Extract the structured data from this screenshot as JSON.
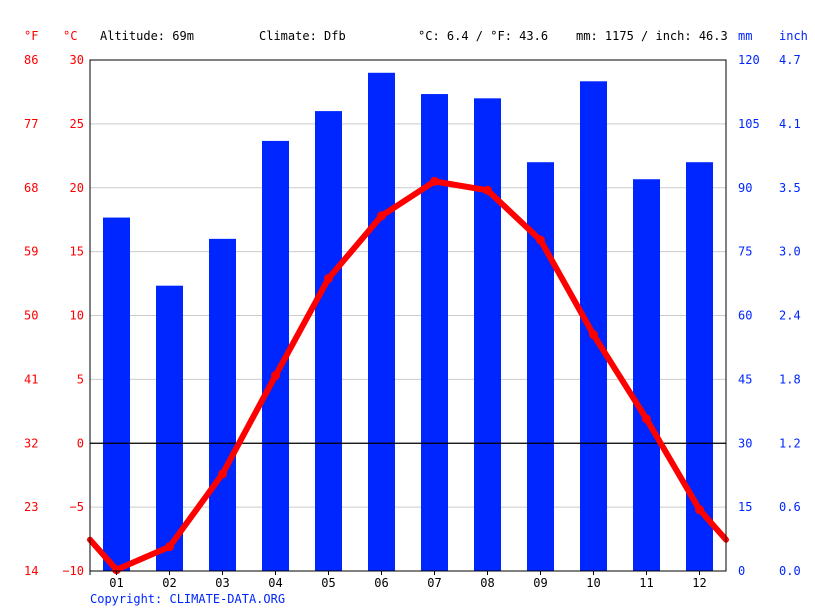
{
  "header": {
    "altitude": "Altitude: 69m",
    "climate": "Climate: Dfb",
    "temp_avg": "°C: 6.4 / °F: 43.6",
    "precip_total": "mm: 1175 / inch: 46.3"
  },
  "copyright": "Copyright: CLIMATE-DATA.ORG",
  "colors": {
    "temperature": "#ff0000",
    "precipitation": "#0026ff",
    "fahrenheit_axis": "#ff0000",
    "celsius_axis": "#ff0000",
    "mm_axis": "#0026ff",
    "inch_axis": "#0026ff"
  },
  "chart_data": {
    "type": "bar",
    "categories": [
      "01",
      "02",
      "03",
      "04",
      "05",
      "06",
      "07",
      "08",
      "09",
      "10",
      "11",
      "12"
    ],
    "series": [
      {
        "type": "bar",
        "unit": "mm",
        "values": [
          83,
          67,
          78,
          101,
          108,
          117,
          112,
          111,
          96,
          115,
          92,
          96
        ]
      },
      {
        "type": "line",
        "unit": "°C",
        "values": [
          -9.9,
          -8.1,
          -2.4,
          5.3,
          12.9,
          17.8,
          20.5,
          19.8,
          15.9,
          8.5,
          1.9,
          -5.2
        ]
      }
    ],
    "axes": {
      "fahrenheit": {
        "unit_label": "°F",
        "ticks": [
          "86",
          "77",
          "68",
          "59",
          "50",
          "41",
          "32",
          "23",
          "14"
        ]
      },
      "celsius": {
        "unit_label": "°C",
        "ticks": [
          "30",
          "25",
          "20",
          "15",
          "10",
          "5",
          "0",
          "−5",
          "−10"
        ],
        "ylim": [
          -10,
          30
        ]
      },
      "mm": {
        "unit_label": "mm",
        "ticks": [
          "120",
          "105",
          "90",
          "75",
          "60",
          "45",
          "30",
          "15",
          "0"
        ],
        "ylim": [
          0,
          120
        ]
      },
      "inch": {
        "unit_label": "inch",
        "ticks": [
          "4.7",
          "4.1",
          "3.5",
          "3.0",
          "2.4",
          "1.8",
          "1.2",
          "0.6",
          "0.0"
        ]
      }
    },
    "grid": true
  }
}
